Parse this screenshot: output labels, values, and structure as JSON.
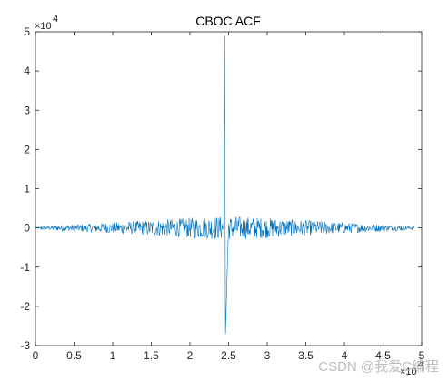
{
  "figure": {
    "watermark": "CSDN @我爱C编程"
  },
  "chart_data": {
    "type": "line",
    "title": "CBOC ACF",
    "xlabel": "",
    "ylabel": "",
    "xlim": [
      0,
      50000
    ],
    "ylim": [
      -30000,
      50000
    ],
    "x_ticks": [
      0,
      5000,
      10000,
      15000,
      20000,
      25000,
      30000,
      35000,
      40000,
      45000,
      50000
    ],
    "x_tick_labels": [
      "0",
      "0.5",
      "1",
      "1.5",
      "2",
      "2.5",
      "3",
      "3.5",
      "4",
      "4.5",
      "5"
    ],
    "y_ticks": [
      -30000,
      -20000,
      -10000,
      0,
      10000,
      20000,
      30000,
      40000,
      50000
    ],
    "y_tick_labels": [
      "-3",
      "-2",
      "-1",
      "0",
      "1",
      "2",
      "3",
      "4",
      "5"
    ],
    "x_exponent": "4",
    "y_exponent": "4",
    "grid": false,
    "line_color": "#0072bd",
    "series": [
      {
        "x": [
          0,
          1000,
          2000,
          3000,
          4000,
          5000,
          6000,
          7000,
          8000,
          9000,
          10000,
          11000,
          12000,
          13000,
          14000,
          15000,
          16000,
          17000,
          18000,
          19000,
          20000,
          21000,
          22000,
          23000,
          24000,
          24400,
          24500,
          24600,
          25000,
          26000,
          27000,
          28000,
          29000,
          30000,
          31000,
          32000,
          33000,
          34000,
          35000,
          36000,
          37000,
          38000,
          39000,
          40000,
          41000,
          42000,
          43000,
          44000,
          45000,
          46000,
          47000,
          48000,
          49000
        ],
        "values": [
          0,
          600,
          -500,
          800,
          -700,
          900,
          -1000,
          1100,
          -1200,
          1300,
          -1400,
          1500,
          -1600,
          1800,
          -1900,
          2000,
          -2100,
          2200,
          -2300,
          2500,
          -2600,
          2700,
          -2800,
          3000,
          -3000,
          3000,
          49000,
          -27000,
          3000,
          -3000,
          2900,
          -2800,
          2700,
          -2600,
          2500,
          -2300,
          2200,
          -2100,
          2000,
          -1900,
          1800,
          -1600,
          1500,
          -1400,
          1300,
          -1200,
          1100,
          -1000,
          900,
          -700,
          800,
          -500,
          400
        ]
      }
    ]
  }
}
